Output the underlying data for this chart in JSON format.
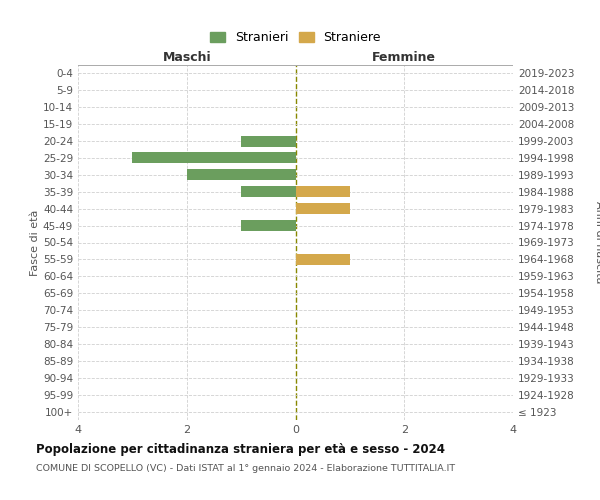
{
  "age_groups": [
    "100+",
    "95-99",
    "90-94",
    "85-89",
    "80-84",
    "75-79",
    "70-74",
    "65-69",
    "60-64",
    "55-59",
    "50-54",
    "45-49",
    "40-44",
    "35-39",
    "30-34",
    "25-29",
    "20-24",
    "15-19",
    "10-14",
    "5-9",
    "0-4"
  ],
  "birth_years": [
    "≤ 1923",
    "1924-1928",
    "1929-1933",
    "1934-1938",
    "1939-1943",
    "1944-1948",
    "1949-1953",
    "1954-1958",
    "1959-1963",
    "1964-1968",
    "1969-1973",
    "1974-1978",
    "1979-1983",
    "1984-1988",
    "1989-1993",
    "1994-1998",
    "1999-2003",
    "2004-2008",
    "2009-2013",
    "2014-2018",
    "2019-2023"
  ],
  "maschi": [
    0,
    0,
    0,
    0,
    0,
    0,
    0,
    0,
    0,
    0,
    0,
    1,
    0,
    1,
    2,
    3,
    1,
    0,
    0,
    0,
    0
  ],
  "femmine": [
    0,
    0,
    0,
    0,
    0,
    0,
    0,
    0,
    0,
    1,
    0,
    0,
    1,
    1,
    0,
    0,
    0,
    0,
    0,
    0,
    0
  ],
  "color_maschi": "#6b9e5e",
  "color_femmine": "#d4a84b",
  "title": "Popolazione per cittadinanza straniera per età e sesso - 2024",
  "subtitle": "COMUNE DI SCOPELLO (VC) - Dati ISTAT al 1° gennaio 2024 - Elaborazione TUTTITALIA.IT",
  "label_left": "Maschi",
  "label_right": "Femmine",
  "ylabel_left": "Fasce di età",
  "ylabel_right": "Anni di nascita",
  "legend_maschi": "Stranieri",
  "legend_femmine": "Straniere",
  "xlim": 4,
  "background_color": "#ffffff",
  "grid_color": "#d0d0d0",
  "axis_line_color": "#888800"
}
